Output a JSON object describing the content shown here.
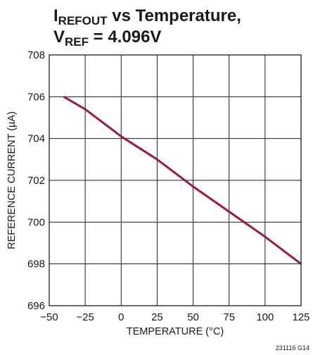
{
  "chart_data": {
    "type": "line",
    "title": {
      "line1": {
        "main": "I",
        "sub": "REFOUT",
        "rest": " vs Temperature,"
      },
      "line2": {
        "main": "V",
        "sub": "REF",
        "rest": " = 4.096V"
      }
    },
    "xlabel": "TEMPERATURE (°C)",
    "ylabel": "REFERENCE CURRENT (µA)",
    "figure_code": "231116 G14",
    "xlim": [
      -50,
      125
    ],
    "ylim": [
      696,
      708
    ],
    "x_ticks": [
      {
        "value": -50,
        "label": "−50"
      },
      {
        "value": -25,
        "label": "−25"
      },
      {
        "value": 0,
        "label": "0"
      },
      {
        "value": 25,
        "label": "25"
      },
      {
        "value": 50,
        "label": "50"
      },
      {
        "value": 75,
        "label": "75"
      },
      {
        "value": 100,
        "label": "100"
      },
      {
        "value": 125,
        "label": "125"
      }
    ],
    "y_ticks": [
      {
        "value": 696,
        "label": "696"
      },
      {
        "value": 698,
        "label": "698"
      },
      {
        "value": 700,
        "label": "700"
      },
      {
        "value": 702,
        "label": "702"
      },
      {
        "value": 704,
        "label": "704"
      },
      {
        "value": 706,
        "label": "706"
      },
      {
        "value": 708,
        "label": "708"
      }
    ],
    "grid": true,
    "series": [
      {
        "x": [
          -40,
          -25,
          0,
          25,
          50,
          75,
          100,
          125
        ],
        "y": [
          706.0,
          705.4,
          704.1,
          703.0,
          701.7,
          700.5,
          699.3,
          698.0
        ],
        "color": "#9b1b3a"
      }
    ]
  }
}
